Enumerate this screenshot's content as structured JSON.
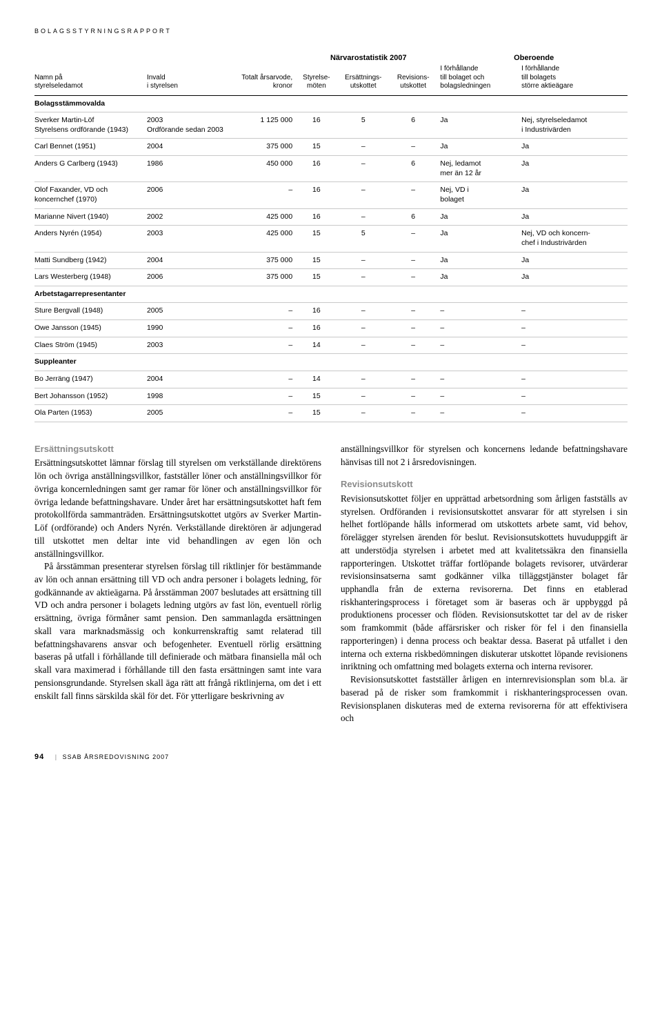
{
  "header_label": "BOLAGSSTYRNINGSRAPPORT",
  "table": {
    "group_headers": {
      "narvaro": "Närvarostatistik 2007",
      "oberoende": "Oberoende"
    },
    "columns": {
      "name": "Namn på\nstyrelseledamot",
      "invald": "Invald\ni styrelsen",
      "arvode": "Totalt årsarvode,\nkronor",
      "moten": "Styrelse-\nmöten",
      "ersatt": "Ersättnings-\nutskottet",
      "revis": "Revisions-\nutskottet",
      "forh1": "I förhållande\ntill bolaget och\nbolagsledningen",
      "forh2": "I förhållande\ntill bolagets\nstörre aktieägare"
    },
    "sections": [
      {
        "title": "Bolagsstämmovalda",
        "rows": [
          {
            "name": "Sverker Martin-Löf\nStyrelsens ordförande (1943)",
            "invald": "2003\nOrdförande sedan 2003",
            "arvode": "1 125 000",
            "moten": "16",
            "ersatt": "5",
            "revis": "6",
            "forh1": "Ja",
            "forh2": "Nej, styrelseledamot\ni Industrivärden"
          },
          {
            "name": "Carl Bennet (1951)",
            "invald": "2004",
            "arvode": "375 000",
            "moten": "15",
            "ersatt": "–",
            "revis": "–",
            "forh1": "Ja",
            "forh2": "Ja"
          },
          {
            "name": "Anders G Carlberg (1943)",
            "invald": "1986",
            "arvode": "450 000",
            "moten": "16",
            "ersatt": "–",
            "revis": "6",
            "forh1": "Nej, ledamot\nmer än 12 år",
            "forh2": "Ja"
          },
          {
            "name": "Olof Faxander, VD och\nkoncernchef (1970)",
            "invald": "2006",
            "arvode": "–",
            "moten": "16",
            "ersatt": "–",
            "revis": "–",
            "forh1": "Nej, VD i\nbolaget",
            "forh2": "Ja"
          },
          {
            "name": "Marianne Nivert (1940)",
            "invald": "2002",
            "arvode": "425 000",
            "moten": "16",
            "ersatt": "–",
            "revis": "6",
            "forh1": "Ja",
            "forh2": "Ja"
          },
          {
            "name": "Anders Nyrén (1954)",
            "invald": "2003",
            "arvode": "425 000",
            "moten": "15",
            "ersatt": "5",
            "revis": "–",
            "forh1": "Ja",
            "forh2": "Nej, VD och koncern-\nchef i Industrivärden"
          },
          {
            "name": "Matti Sundberg (1942)",
            "invald": "2004",
            "arvode": "375 000",
            "moten": "15",
            "ersatt": "–",
            "revis": "–",
            "forh1": "Ja",
            "forh2": "Ja"
          },
          {
            "name": "Lars Westerberg (1948)",
            "invald": "2006",
            "arvode": "375 000",
            "moten": "15",
            "ersatt": "–",
            "revis": "–",
            "forh1": "Ja",
            "forh2": "Ja"
          }
        ]
      },
      {
        "title": "Arbetstagarrepresentanter",
        "rows": [
          {
            "name": "Sture Bergvall (1948)",
            "invald": "2005",
            "arvode": "–",
            "moten": "16",
            "ersatt": "–",
            "revis": "–",
            "forh1": "–",
            "forh2": "–"
          },
          {
            "name": "Owe Jansson (1945)",
            "invald": "1990",
            "arvode": "–",
            "moten": "16",
            "ersatt": "–",
            "revis": "–",
            "forh1": "–",
            "forh2": "–"
          },
          {
            "name": "Claes Ström (1945)",
            "invald": "2003",
            "arvode": "–",
            "moten": "14",
            "ersatt": "–",
            "revis": "–",
            "forh1": "–",
            "forh2": "–"
          }
        ]
      },
      {
        "title": "Suppleanter",
        "rows": [
          {
            "name": "Bo Jerräng (1947)",
            "invald": "2004",
            "arvode": "–",
            "moten": "14",
            "ersatt": "–",
            "revis": "–",
            "forh1": "–",
            "forh2": "–"
          },
          {
            "name": "Bert Johansson (1952)",
            "invald": "1998",
            "arvode": "–",
            "moten": "15",
            "ersatt": "–",
            "revis": "–",
            "forh1": "–",
            "forh2": "–"
          },
          {
            "name": "Ola Parten (1953)",
            "invald": "2005",
            "arvode": "–",
            "moten": "15",
            "ersatt": "–",
            "revis": "–",
            "forh1": "–",
            "forh2": "–"
          }
        ]
      }
    ]
  },
  "body": {
    "left": {
      "heading": "Ersättningsutskott",
      "p1": "Ersättningsutskottet lämnar förslag till styrelsen om verkställande direktörens lön och övriga anställningsvillkor, fastställer löner och anställningsvillkor för övriga koncernledningen samt ger ramar för löner och anställningsvillkor för övriga ledande befattningshavare. Under året har ersättningsutskottet haft fem protokollförda sammanträden. Ersättningsutskottet utgörs av Sverker Martin-Löf (ordförande) och Anders Nyrén. Verkställande direktören är adjungerad till utskottet men deltar inte vid behandlingen av egen lön och anställningsvillkor.",
      "p2": "På årsstämman presenterar styrelsen förslag till riktlinjer för bestämmande av lön och annan ersättning till VD och andra personer i bolagets ledning, för godkännande av aktieägarna. På årsstämman 2007 beslutades att ersättning till VD och andra personer i bolagets ledning utgörs av fast lön, eventuell rörlig ersättning, övriga förmåner samt pension. Den sammanlagda ersättningen skall vara marknadsmässig och konkurrenskraftig samt relaterad till befattningshavarens ansvar och befogenheter. Eventuell rörlig ersättning baseras på utfall i förhållande till definierade och mätbara finansiella mål och skall vara maximerad i förhållande till den fasta ersättningen samt inte vara pensionsgrundande. Styrelsen skall äga rätt att frångå riktlinjerna, om det i ett enskilt fall finns särskilda skäl för det. För ytterligare beskrivning av"
    },
    "right": {
      "p0": "anställningsvillkor för styrelsen och koncernens ledande befattningshavare hänvisas till not 2 i årsredovisningen.",
      "heading": "Revisionsutskott",
      "p1": "Revisionsutskottet följer en upprättad arbetsordning som årligen fastställs av styrelsen. Ordföranden i revisionsutskottet ansvarar för att styrelsen i sin helhet fortlöpande hålls informerad om utskottets arbete samt, vid behov, förelägger styrelsen ärenden för beslut. Revisionsutskottets huvuduppgift är att understödja styrelsen i arbetet med att kvalitetssäkra den finansiella rapporteringen. Utskottet träffar fortlöpande bolagets revisorer, utvärderar revisionsinsatserna samt godkänner vilka tilläggstjänster bolaget får upphandla från de externa revisorerna. Det finns en etablerad riskhanteringsprocess i företaget som är baseras och är uppbyggd på produktionens processer och flöden. Revisionsutskottet tar del av de risker som framkommit (både affärsrisker och risker för fel i den finansiella rapporteringen) i denna process och beaktar dessa. Baserat på utfallet i den interna och externa riskbedömningen diskuterar utskottet löpande revisionens inriktning och omfattning med bolagets externa och interna revisorer.",
      "p2": "Revisionsutskottet fastställer årligen en internrevisionsplan som bl.a. är baserad på de risker som framkommit i riskhanteringsprocessen ovan. Revisionsplanen diskuteras med de externa revisorerna för att effektivisera och"
    }
  },
  "footer": {
    "page": "94",
    "text": "SSAB ÅRSREDOVISNING 2007"
  }
}
